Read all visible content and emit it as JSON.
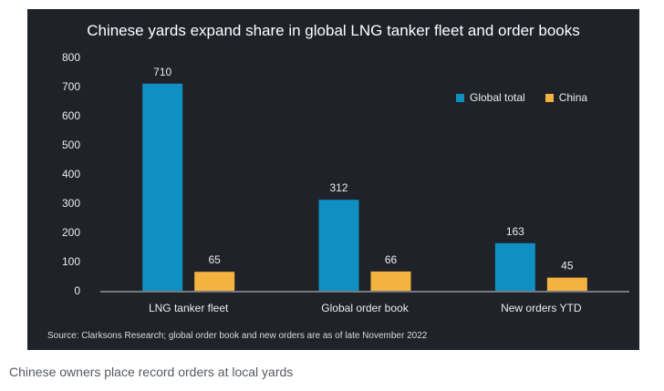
{
  "chart_data": {
    "type": "bar",
    "title": "Chinese yards expand share in global LNG tanker fleet and order books",
    "categories": [
      "LNG tanker  fleet",
      "Global order book",
      "New orders YTD"
    ],
    "series": [
      {
        "name": "Global total",
        "values": [
          710,
          312,
          163
        ],
        "color": "#0f8fc2"
      },
      {
        "name": "China",
        "values": [
          65,
          66,
          45
        ],
        "color": "#f4b23f"
      }
    ],
    "ylim": [
      0,
      800
    ],
    "yticks": [
      0,
      100,
      200,
      300,
      400,
      500,
      600,
      700,
      800
    ],
    "legend": "top-right",
    "grid": false
  },
  "source_note": "Source: Clarksons Research; global order book and new orders are as of  late November 2022",
  "caption": "Chinese owners place record orders at local yards"
}
